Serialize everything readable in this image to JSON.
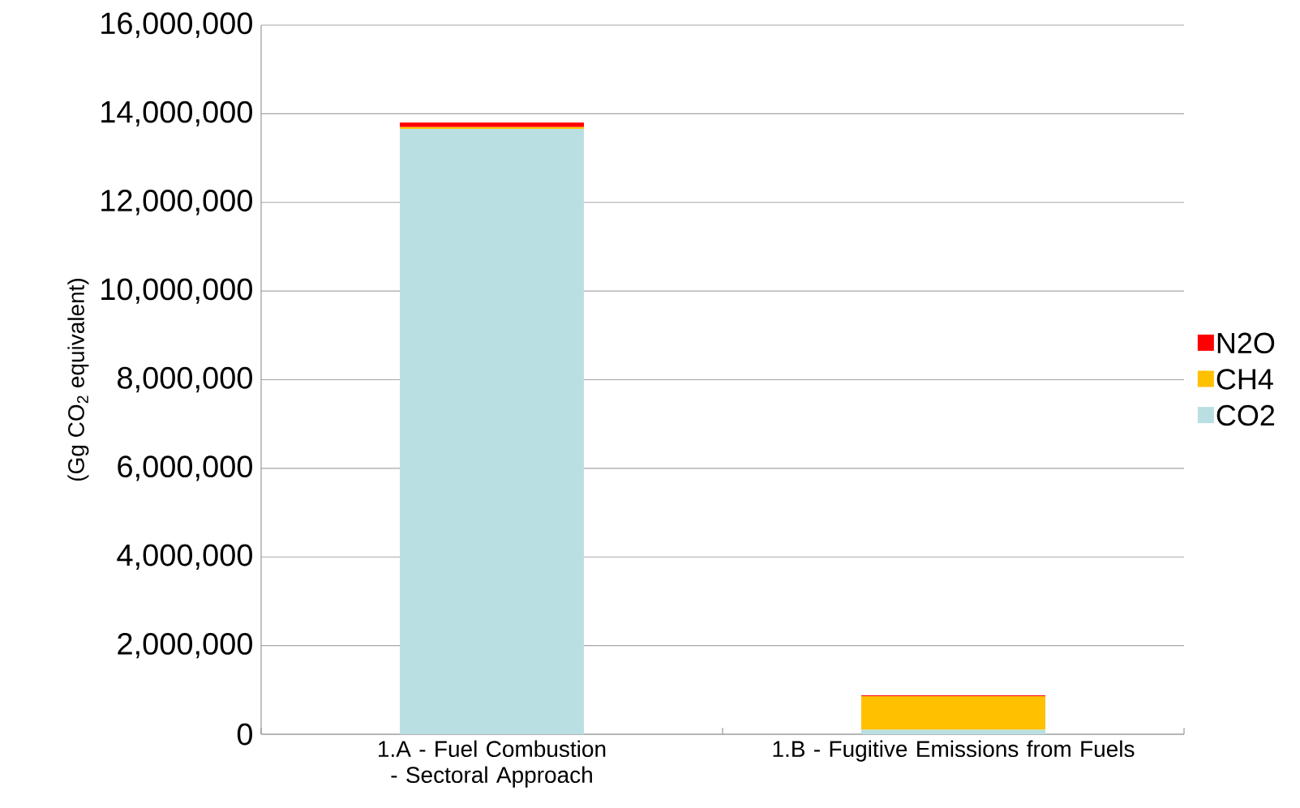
{
  "chart_data": {
    "type": "bar",
    "stacked": true,
    "ylabel": "(Gg CO$_{2}$ equivalent)",
    "categories": [
      "1.A - Fuel Combustion - Sectoral Approach",
      "1.B - Fugitive Emissions from Fuels"
    ],
    "series": [
      {
        "name": "CO2",
        "color": "#b9dfe2",
        "values": [
          13660000,
          100000
        ]
      },
      {
        "name": "CH4",
        "color": "#ffc000",
        "values": [
          40000,
          760000
        ]
      },
      {
        "name": "N2O",
        "color": "#ff0000",
        "values": [
          100000,
          20000
        ]
      }
    ],
    "ylim": [
      0,
      16000000
    ],
    "yticks": [
      {
        "value": 0,
        "label": "0"
      },
      {
        "value": 2000000,
        "label": "2,000,000"
      },
      {
        "value": 4000000,
        "label": "4,000,000"
      },
      {
        "value": 6000000,
        "label": "6,000,000"
      },
      {
        "value": 8000000,
        "label": "8,000,000"
      },
      {
        "value": 10000000,
        "label": "10,000,000"
      },
      {
        "value": 12000000,
        "label": "12,000,000"
      },
      {
        "value": 14000000,
        "label": "14,000,000"
      },
      {
        "value": 16000000,
        "label": "16,000,000"
      }
    ],
    "grid": "y",
    "legend": "right"
  }
}
